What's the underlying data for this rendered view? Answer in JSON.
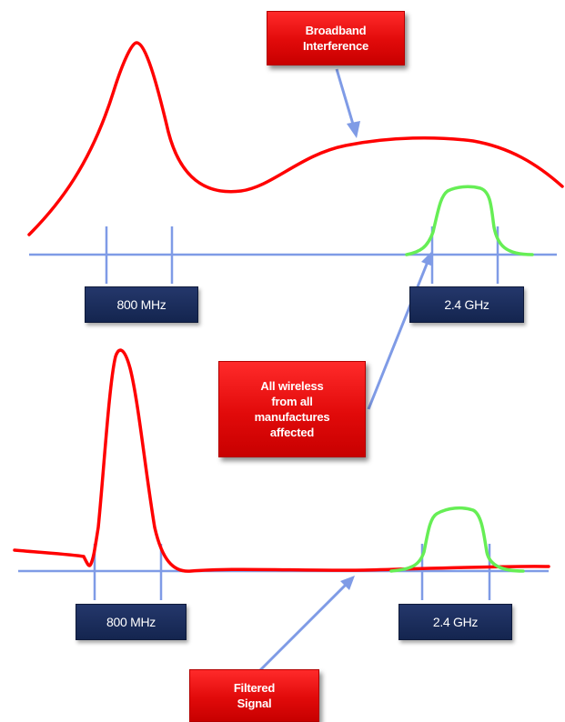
{
  "callouts": {
    "broadband": {
      "line1": "Broadband",
      "line2": "Interference"
    },
    "all_wireless": {
      "line1": "All wireless",
      "line2": "from all",
      "line3": "manufactures",
      "line4": "affected"
    },
    "filtered": {
      "line1": "Filtered",
      "line2": "Signal"
    }
  },
  "top_panel": {
    "label_800": "800 MHz",
    "label_24": "2.4 GHz"
  },
  "bottom_panel": {
    "label_800": "800 MHz",
    "label_24": "2.4 GHz"
  },
  "colors": {
    "interference_curve": "#ff0000",
    "wifi_signal": "#66ee55",
    "axis": "#7f9be6",
    "arrow": "#7f9be6",
    "callout_fill": "#e10a0a",
    "label_fill": "#1a2b5e"
  }
}
